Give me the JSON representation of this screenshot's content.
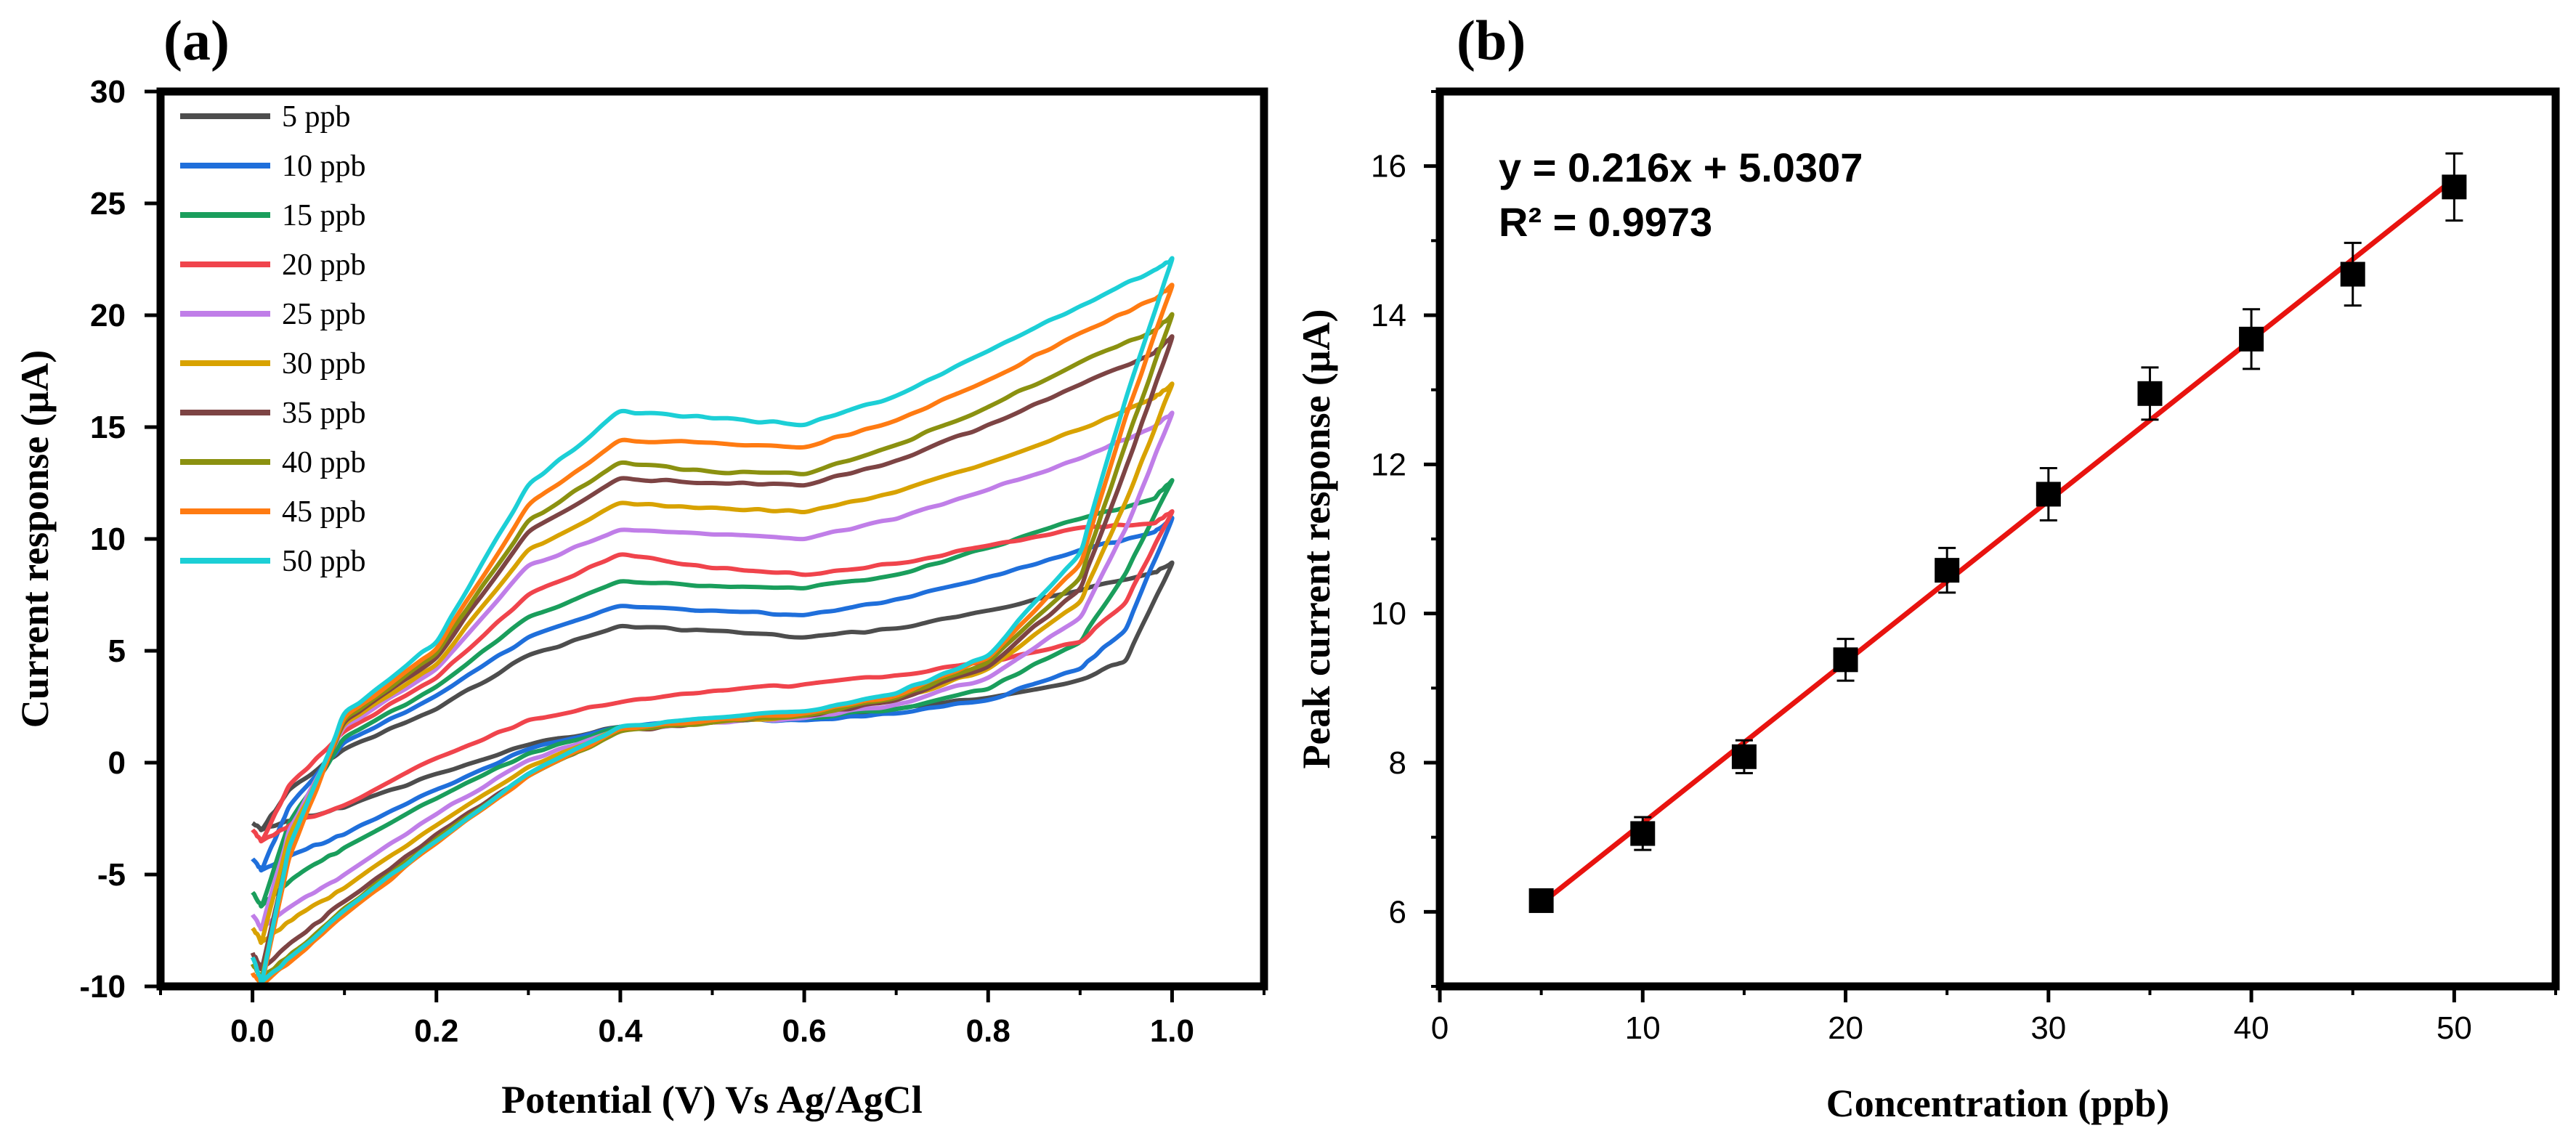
{
  "chart_data": [
    {
      "panel": "(a)",
      "type": "line",
      "title": "",
      "xlabel": "Potential (V) Vs Ag/AgCl",
      "ylabel": "Current response (μA)",
      "xlim": [
        -0.1,
        1.1
      ],
      "ylim": [
        -10,
        30
      ],
      "xticks": [
        "0.0",
        "0.2",
        "0.4",
        "0.6",
        "0.8",
        "1.0"
      ],
      "yticks": [
        "-10",
        "-5",
        "0",
        "5",
        "10",
        "15",
        "20",
        "25",
        "30"
      ],
      "legend_position": "top-left",
      "grid": false,
      "series": [
        {
          "name": "5 ppb",
          "color": "#4d4d4d",
          "start": -2.7,
          "vmin": -3.0,
          "anodic_pts": [
            [
              0.1,
              0.6
            ],
            [
              0.2,
              2.4
            ],
            [
              0.3,
              4.8
            ],
            [
              0.4,
              6.1
            ],
            [
              0.5,
              5.9
            ],
            [
              0.6,
              5.6
            ],
            [
              0.7,
              6.0
            ],
            [
              0.8,
              6.8
            ],
            [
              0.9,
              7.7
            ],
            [
              0.98,
              8.5
            ]
          ],
          "end": 8.9,
          "cathodic_pts": [
            [
              0.95,
              4.6
            ],
            [
              0.9,
              3.7
            ],
            [
              0.8,
              2.9
            ],
            [
              0.7,
              2.4
            ],
            [
              0.6,
              2.0
            ],
            [
              0.5,
              1.9
            ],
            [
              0.4,
              1.6
            ],
            [
              0.3,
              0.8
            ],
            [
              0.2,
              -0.5
            ],
            [
              0.1,
              -2.0
            ],
            [
              0.05,
              -2.5
            ]
          ]
        },
        {
          "name": "10 ppb",
          "color": "#1f6fdb",
          "start": -4.3,
          "vmin": -4.8,
          "anodic_pts": [
            [
              0.1,
              0.9
            ],
            [
              0.2,
              3.0
            ],
            [
              0.3,
              5.6
            ],
            [
              0.4,
              7.0
            ],
            [
              0.5,
              6.8
            ],
            [
              0.6,
              6.6
            ],
            [
              0.7,
              7.3
            ],
            [
              0.8,
              8.3
            ],
            [
              0.9,
              9.5
            ],
            [
              0.98,
              10.3
            ]
          ],
          "end": 10.9,
          "cathodic_pts": [
            [
              0.95,
              6.0
            ],
            [
              0.9,
              4.2
            ],
            [
              0.8,
              2.8
            ],
            [
              0.7,
              2.2
            ],
            [
              0.6,
              1.9
            ],
            [
              0.5,
              1.9
            ],
            [
              0.4,
              1.6
            ],
            [
              0.3,
              0.6
            ],
            [
              0.2,
              -1.2
            ],
            [
              0.1,
              -3.2
            ],
            [
              0.05,
              -4.0
            ]
          ]
        },
        {
          "name": "15 ppb",
          "color": "#1a9e5c",
          "start": -5.8,
          "vmin": -6.4,
          "anodic_pts": [
            [
              0.1,
              1.1
            ],
            [
              0.2,
              3.4
            ],
            [
              0.3,
              6.5
            ],
            [
              0.4,
              8.1
            ],
            [
              0.5,
              7.9
            ],
            [
              0.6,
              7.8
            ],
            [
              0.7,
              8.4
            ],
            [
              0.8,
              9.6
            ],
            [
              0.9,
              10.9
            ],
            [
              0.98,
              11.8
            ]
          ],
          "end": 12.6,
          "cathodic_pts": [
            [
              0.95,
              8.5
            ],
            [
              0.9,
              5.4
            ],
            [
              0.8,
              3.3
            ],
            [
              0.7,
              2.4
            ],
            [
              0.6,
              2.0
            ],
            [
              0.5,
              1.9
            ],
            [
              0.4,
              1.6
            ],
            [
              0.3,
              0.4
            ],
            [
              0.2,
              -1.6
            ],
            [
              0.1,
              -3.8
            ],
            [
              0.05,
              -5.0
            ]
          ]
        },
        {
          "name": "20 ppb",
          "color": "#f0444c",
          "start": -3.0,
          "vmin": -3.5,
          "anodic_pts": [
            [
              0.1,
              1.4
            ],
            [
              0.2,
              3.8
            ],
            [
              0.3,
              7.5
            ],
            [
              0.4,
              9.3
            ],
            [
              0.5,
              8.7
            ],
            [
              0.6,
              8.4
            ],
            [
              0.7,
              8.9
            ],
            [
              0.8,
              9.7
            ],
            [
              0.9,
              10.5
            ],
            [
              0.98,
              10.7
            ]
          ],
          "end": 11.2,
          "cathodic_pts": [
            [
              0.95,
              7.2
            ],
            [
              0.9,
              5.4
            ],
            [
              0.8,
              4.5
            ],
            [
              0.7,
              3.9
            ],
            [
              0.6,
              3.5
            ],
            [
              0.5,
              3.2
            ],
            [
              0.4,
              2.7
            ],
            [
              0.3,
              1.9
            ],
            [
              0.2,
              0.2
            ],
            [
              0.1,
              -1.9
            ],
            [
              0.05,
              -2.6
            ]
          ]
        },
        {
          "name": "25 ppb",
          "color": "#c07ee8",
          "start": -6.8,
          "vmin": -7.4,
          "anodic_pts": [
            [
              0.1,
              1.6
            ],
            [
              0.2,
              4.2
            ],
            [
              0.3,
              8.8
            ],
            [
              0.4,
              10.4
            ],
            [
              0.5,
              10.2
            ],
            [
              0.6,
              10.0
            ],
            [
              0.7,
              10.9
            ],
            [
              0.8,
              12.2
            ],
            [
              0.9,
              13.6
            ],
            [
              0.98,
              15.0
            ]
          ],
          "end": 15.6,
          "cathodic_pts": [
            [
              0.95,
              10.5
            ],
            [
              0.9,
              6.5
            ],
            [
              0.8,
              3.8
            ],
            [
              0.7,
              2.6
            ],
            [
              0.6,
              2.0
            ],
            [
              0.5,
              1.8
            ],
            [
              0.4,
              1.5
            ],
            [
              0.3,
              0.1
            ],
            [
              0.2,
              -2.3
            ],
            [
              0.1,
              -5.0
            ],
            [
              0.05,
              -6.2
            ]
          ]
        },
        {
          "name": "30 ppb",
          "color": "#d8a200",
          "start": -7.4,
          "vmin": -8.0,
          "anodic_pts": [
            [
              0.1,
              1.7
            ],
            [
              0.2,
              4.4
            ],
            [
              0.3,
              9.5
            ],
            [
              0.4,
              11.6
            ],
            [
              0.5,
              11.4
            ],
            [
              0.6,
              11.2
            ],
            [
              0.7,
              12.1
            ],
            [
              0.8,
              13.4
            ],
            [
              0.9,
              14.9
            ],
            [
              0.98,
              16.3
            ]
          ],
          "end": 16.9,
          "cathodic_pts": [
            [
              0.95,
              11.7
            ],
            [
              0.9,
              7.2
            ],
            [
              0.8,
              4.2
            ],
            [
              0.7,
              2.8
            ],
            [
              0.6,
              2.1
            ],
            [
              0.5,
              1.8
            ],
            [
              0.4,
              1.5
            ],
            [
              0.3,
              -0.2
            ],
            [
              0.2,
              -2.8
            ],
            [
              0.1,
              -5.6
            ],
            [
              0.05,
              -6.8
            ]
          ]
        },
        {
          "name": "35 ppb",
          "color": "#7d4444",
          "start": -8.5,
          "vmin": -9.2,
          "anodic_pts": [
            [
              0.1,
              1.8
            ],
            [
              0.2,
              4.7
            ],
            [
              0.3,
              10.3
            ],
            [
              0.4,
              12.7
            ],
            [
              0.5,
              12.5
            ],
            [
              0.6,
              12.4
            ],
            [
              0.7,
              13.5
            ],
            [
              0.8,
              15.1
            ],
            [
              0.9,
              16.9
            ],
            [
              0.98,
              18.3
            ]
          ],
          "end": 19.0,
          "cathodic_pts": [
            [
              0.95,
              13.2
            ],
            [
              0.9,
              7.8
            ],
            [
              0.8,
              4.3
            ],
            [
              0.7,
              2.8
            ],
            [
              0.6,
              2.1
            ],
            [
              0.5,
              1.8
            ],
            [
              0.4,
              1.4
            ],
            [
              0.3,
              -0.5
            ],
            [
              0.2,
              -3.2
            ],
            [
              0.1,
              -6.2
            ],
            [
              0.05,
              -7.8
            ]
          ]
        },
        {
          "name": "40 ppb",
          "color": "#8b9110",
          "start": -9.0,
          "vmin": -9.6,
          "anodic_pts": [
            [
              0.1,
              1.9
            ],
            [
              0.2,
              4.9
            ],
            [
              0.3,
              10.8
            ],
            [
              0.4,
              13.4
            ],
            [
              0.5,
              13.0
            ],
            [
              0.6,
              12.9
            ],
            [
              0.7,
              14.2
            ],
            [
              0.8,
              15.9
            ],
            [
              0.9,
              17.9
            ],
            [
              0.98,
              19.3
            ]
          ],
          "end": 20.0,
          "cathodic_pts": [
            [
              0.95,
              14.3
            ],
            [
              0.9,
              8.3
            ],
            [
              0.8,
              4.5
            ],
            [
              0.7,
              2.9
            ],
            [
              0.6,
              2.1
            ],
            [
              0.5,
              1.8
            ],
            [
              0.4,
              1.4
            ],
            [
              0.3,
              -0.6
            ],
            [
              0.2,
              -3.4
            ],
            [
              0.1,
              -6.5
            ],
            [
              0.05,
              -8.3
            ]
          ]
        },
        {
          "name": "45 ppb",
          "color": "#ff7b12",
          "start": -9.4,
          "vmin": -9.9,
          "anodic_pts": [
            [
              0.1,
              2.0
            ],
            [
              0.2,
              5.1
            ],
            [
              0.3,
              11.5
            ],
            [
              0.4,
              14.4
            ],
            [
              0.5,
              14.3
            ],
            [
              0.6,
              14.1
            ],
            [
              0.7,
              15.3
            ],
            [
              0.8,
              17.1
            ],
            [
              0.9,
              19.2
            ],
            [
              0.98,
              20.7
            ]
          ],
          "end": 21.3,
          "cathodic_pts": [
            [
              0.95,
              15.5
            ],
            [
              0.9,
              8.9
            ],
            [
              0.8,
              4.7
            ],
            [
              0.7,
              3.0
            ],
            [
              0.6,
              2.2
            ],
            [
              0.5,
              1.9
            ],
            [
              0.4,
              1.5
            ],
            [
              0.3,
              -0.6
            ],
            [
              0.2,
              -3.6
            ],
            [
              0.1,
              -6.8
            ],
            [
              0.05,
              -8.6
            ]
          ]
        },
        {
          "name": "50 ppb",
          "color": "#1ccfd6",
          "start": -8.7,
          "vmin": -9.8,
          "anodic_pts": [
            [
              0.1,
              2.2
            ],
            [
              0.2,
              5.4
            ],
            [
              0.3,
              12.4
            ],
            [
              0.4,
              15.7
            ],
            [
              0.5,
              15.4
            ],
            [
              0.6,
              15.1
            ],
            [
              0.7,
              16.4
            ],
            [
              0.8,
              18.4
            ],
            [
              0.9,
              20.4
            ],
            [
              0.98,
              22.0
            ]
          ],
          "end": 22.5,
          "cathodic_pts": [
            [
              0.95,
              16.3
            ],
            [
              0.9,
              9.4
            ],
            [
              0.8,
              4.8
            ],
            [
              0.7,
              3.1
            ],
            [
              0.6,
              2.3
            ],
            [
              0.5,
              2.0
            ],
            [
              0.4,
              1.6
            ],
            [
              0.3,
              -0.5
            ],
            [
              0.2,
              -3.5
            ],
            [
              0.1,
              -6.6
            ],
            [
              0.05,
              -8.4
            ]
          ]
        }
      ]
    },
    {
      "panel": "(b)",
      "type": "scatter",
      "title": "",
      "xlabel": "Concentration (ppb)",
      "ylabel": "Peak current response (μA)",
      "xlim": [
        0,
        55
      ],
      "ylim": [
        5,
        17
      ],
      "xticks": [
        "0",
        "10",
        "20",
        "30",
        "40",
        "50"
      ],
      "yticks": [
        "6",
        "8",
        "10",
        "12",
        "14",
        "16"
      ],
      "grid": false,
      "x": [
        5,
        10,
        15,
        20,
        25,
        30,
        35,
        40,
        45,
        50
      ],
      "y": [
        6.15,
        7.05,
        8.08,
        9.38,
        10.58,
        11.6,
        12.95,
        13.68,
        14.55,
        15.72
      ],
      "error": [
        0.12,
        0.22,
        0.22,
        0.28,
        0.3,
        0.35,
        0.35,
        0.4,
        0.42,
        0.45
      ],
      "fit": {
        "slope": 0.216,
        "intercept": 5.0307,
        "x_range": [
          5,
          50
        ],
        "color": "#e8130f"
      },
      "annotations": [
        "y = 0.216x + 5.0307",
        "R² = 0.9973"
      ]
    }
  ],
  "panel_labels": [
    "(a)",
    "(b)"
  ]
}
